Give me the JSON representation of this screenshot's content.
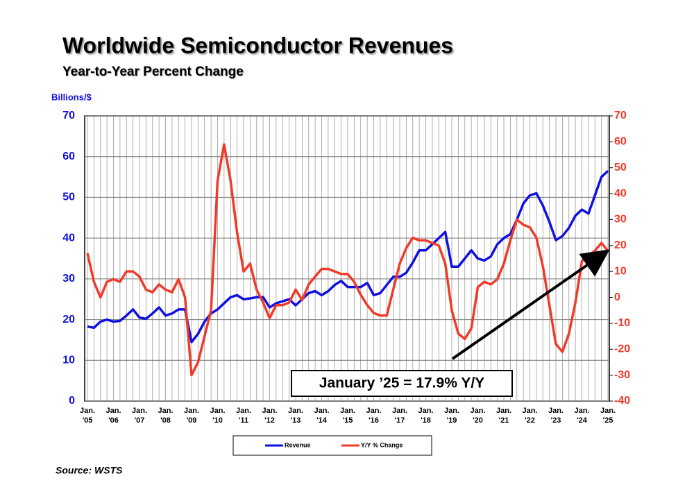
{
  "chart_data": {
    "type": "line",
    "title": "Worldwide Semiconductor Revenues",
    "subtitle": "Year-to-Year Percent Change",
    "ylabel": "Billions/$",
    "source": "Source: WSTS",
    "annotation": "January ’25 = 17.9% Y/Y",
    "categories": [
      "Jan. '05",
      null,
      null,
      null,
      "Jan. '06",
      null,
      null,
      null,
      "Jan. '07",
      null,
      null,
      null,
      "Jan. '08",
      null,
      null,
      null,
      "Jan. '09",
      null,
      null,
      null,
      "Jan. '10",
      null,
      null,
      null,
      "Jan. '11",
      null,
      null,
      null,
      "Jan. '12",
      null,
      null,
      null,
      "Jan. '13",
      null,
      null,
      null,
      "Jan. '14",
      null,
      null,
      null,
      "Jan. '15",
      null,
      null,
      null,
      "Jan. '16",
      null,
      null,
      null,
      "Jan. '17",
      null,
      null,
      null,
      "Jan. '18",
      null,
      null,
      null,
      "Jan. '19",
      null,
      null,
      null,
      "Jan. '20",
      null,
      null,
      null,
      "Jan. '21",
      null,
      null,
      null,
      "Jan. '22",
      null,
      null,
      null,
      "Jan. '23",
      null,
      null,
      null,
      "Jan. '24",
      null,
      null,
      null,
      "Jan. '25"
    ],
    "series": [
      {
        "name": "Revenue",
        "color": "#1010e0",
        "axis": "y",
        "values": [
          18.3,
          18,
          19.5,
          20,
          19.5,
          19.7,
          21,
          22.5,
          20.5,
          20.2,
          21.5,
          23,
          21,
          21.5,
          22.5,
          22.5,
          14.5,
          16.5,
          19.5,
          21.5,
          22.5,
          24,
          25.5,
          26,
          25,
          25.2,
          25.5,
          25.5,
          23,
          24,
          24.5,
          25,
          23.5,
          25,
          26.5,
          27,
          26,
          27,
          28.5,
          29.5,
          28,
          28,
          28,
          29,
          26,
          26.5,
          28.5,
          30.5,
          30.5,
          31.5,
          34,
          37,
          37,
          38.5,
          40,
          41.5,
          33,
          33,
          35,
          37,
          35,
          34.5,
          35.5,
          38.5,
          40,
          41,
          44.5,
          48.5,
          50.5,
          51,
          48,
          44,
          39.5,
          40.5,
          42.5,
          45.5,
          47,
          46,
          50.5,
          55,
          56.5
        ]
      },
      {
        "name": "Y/Y % Change",
        "color": "#f03a2a",
        "axis": "y2",
        "values": [
          17,
          6,
          0,
          6,
          7,
          6,
          10,
          10,
          8,
          3,
          2,
          5,
          3,
          2,
          7,
          0,
          -30,
          -25,
          -15,
          -5,
          45,
          59,
          45,
          25,
          10,
          13,
          3,
          -2,
          -8,
          -3,
          -3,
          -2,
          3,
          -1,
          5,
          8,
          11,
          11,
          10,
          9,
          9,
          6,
          1,
          -3,
          -6,
          -7,
          -7,
          3,
          13,
          19,
          23,
          22,
          22,
          21,
          20,
          13,
          -5,
          -14,
          -16,
          -12,
          4,
          6,
          5,
          7,
          13,
          22,
          30,
          28,
          27,
          23,
          12,
          -3,
          -18,
          -21,
          -14,
          -2,
          14,
          16,
          18,
          21,
          17.9
        ]
      }
    ],
    "ylim": [
      0,
      70
    ],
    "yticks": [
      0,
      10,
      20,
      30,
      40,
      50,
      60,
      70
    ],
    "y2lim": [
      -40,
      70
    ],
    "y2ticks": [
      -40,
      -30,
      -20,
      -10,
      0,
      10,
      20,
      30,
      40,
      50,
      60,
      70
    ],
    "grid": true
  }
}
